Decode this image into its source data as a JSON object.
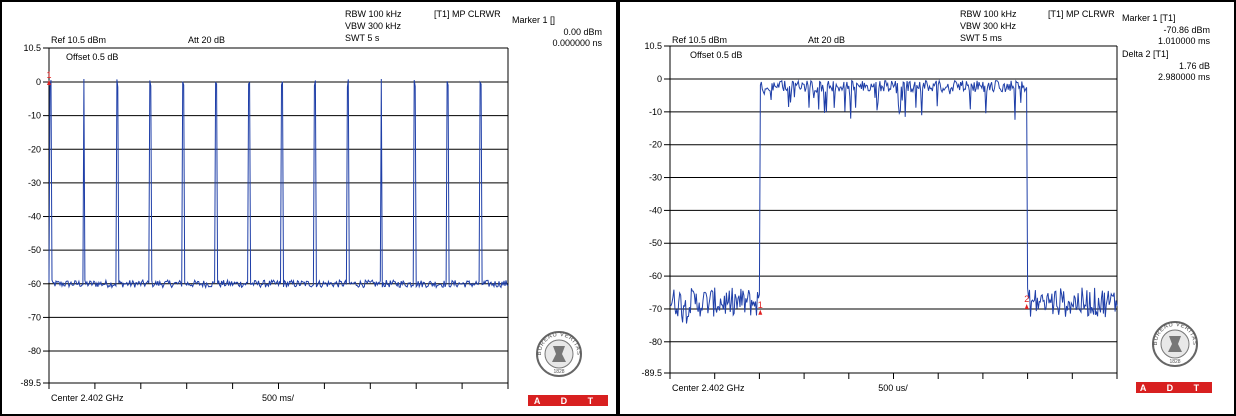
{
  "chart_data": [
    {
      "type": "line",
      "header": {
        "rbw": "RBW 100 kHz",
        "vbw": "VBW 300 kHz",
        "swt": "SWT 5 s",
        "trace_mode": "[T1] MP CLRWR",
        "ref": "Ref 10.5 dBm",
        "att": "Att  20 dB",
        "offset": "Offset 0.5 dB",
        "center": "Center 2.402 GHz",
        "span_per_div": "500 ms/"
      },
      "markers": [
        {
          "label": "Marker 1 []",
          "values": [
            "0.00 dBm",
            "0.000000 ns"
          ]
        }
      ],
      "y_tick_labels": [
        "10.5",
        "0",
        "-10",
        "-20",
        "-30",
        "-40",
        "-50",
        "-60",
        "-70",
        "-80",
        "-89.5"
      ],
      "ylim": [
        -89.5,
        10.5
      ],
      "xlim": [
        0,
        5000
      ],
      "x_unit": "ms",
      "y_unit": "dB",
      "grid": true,
      "series": [
        {
          "color": "#1f3fa8",
          "noise_floor": -60,
          "pulses_x": [
            20,
            380,
            740,
            1100,
            1460,
            1820,
            2180,
            2540,
            2900,
            3260,
            3620,
            3980,
            4340,
            4700
          ],
          "pulses_peak": [
            1,
            1,
            1,
            1,
            1,
            1,
            1,
            1,
            1,
            1,
            1,
            1,
            1,
            1
          ],
          "pulses_width": 20
        }
      ],
      "marker_points": [
        {
          "label": "1",
          "x": 0,
          "y": 0
        }
      ]
    },
    {
      "type": "line",
      "header": {
        "rbw": "RBW 100 kHz",
        "vbw": "VBW 300 kHz",
        "swt": "SWT 5 ms",
        "trace_mode": "[T1] MP CLRWR",
        "ref": "Ref 10.5 dBm",
        "att": "Att  20 dB",
        "offset": "Offset 0.5 dB",
        "center": "Center 2.402 GHz",
        "span_per_div": "500 us/"
      },
      "markers": [
        {
          "label": "Marker 1 [T1]",
          "values": [
            "-70.86 dBm",
            "1.010000 ms"
          ]
        },
        {
          "label": "Delta 2 [T1]",
          "values": [
            "1.76 dB",
            "2.980000 ms"
          ]
        }
      ],
      "y_tick_labels": [
        "10.5",
        "0",
        "-10",
        "-20",
        "-30",
        "-40",
        "-50",
        "-60",
        "-70",
        "-80",
        "-89.5"
      ],
      "ylim": [
        -89.5,
        10.5
      ],
      "xlim": [
        0,
        5000
      ],
      "x_unit": "us",
      "y_unit": "dB",
      "grid": true,
      "series": [
        {
          "color": "#1f3fa8",
          "noise_floor": -68,
          "on_start": 1010,
          "on_end": 3990,
          "on_level": -0.5
        }
      ],
      "marker_points": [
        {
          "label": "1",
          "x": 1010,
          "y": -70.86
        },
        {
          "label": "2",
          "x": 3990,
          "y": -69.1
        }
      ]
    }
  ],
  "logo": {
    "seal_text": "BUREAU VERITAS",
    "seal_year": "1828",
    "badge_text": "A D T",
    "badge_color": "#d82020"
  }
}
